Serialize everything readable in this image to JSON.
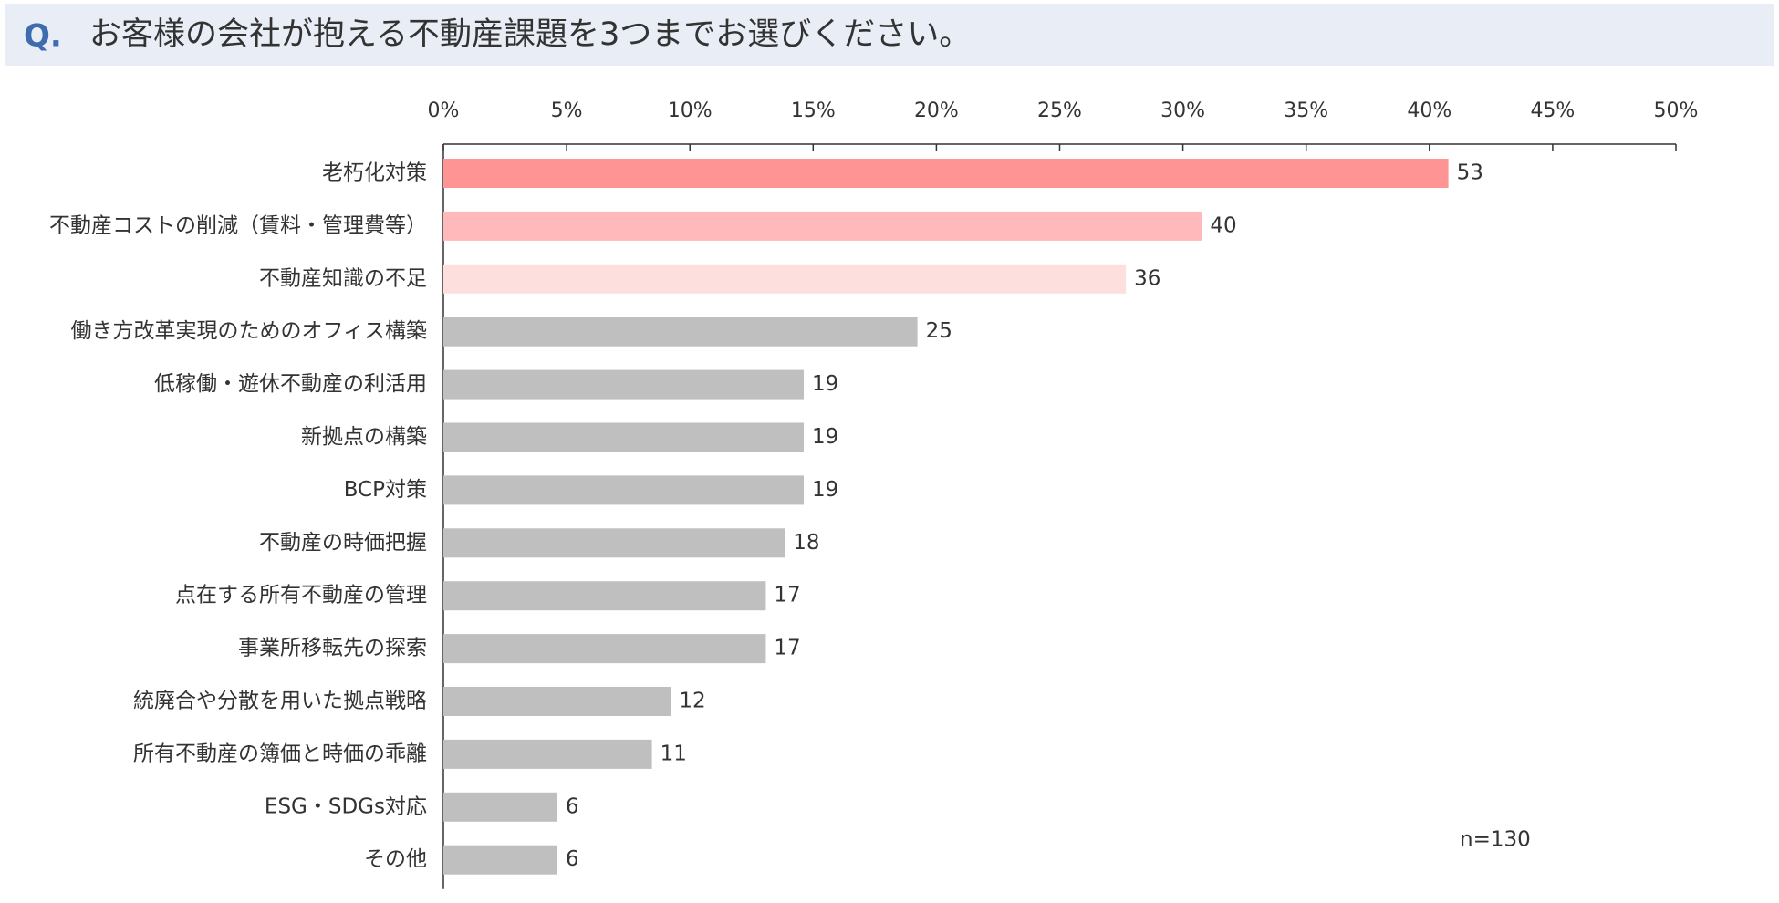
{
  "header": {
    "marker": "Q.",
    "question": "お客様の会社が抱える不動産課題を3つまでお選びください。"
  },
  "chart_data": {
    "type": "hbar",
    "categories": [
      "老朽化対策",
      "不動産コストの削減（賃料・管理費等）",
      "不動産知識の不足",
      "働き方改革実現のためのオフィス構築",
      "低稼働・遊休不動産の利活用",
      "新拠点の構築",
      "BCP対策",
      "不動産の時価把握",
      "点在する所有不動産の管理",
      "事業所移転先の探索",
      "統廃合や分散を用いた拠点戦略",
      "所有不動産の簿価と時価の乖離",
      "ESG・SDGs対応",
      "その他"
    ],
    "values": [
      40.77,
      30.77,
      27.69,
      19.23,
      14.62,
      14.62,
      14.62,
      13.85,
      13.08,
      13.08,
      9.23,
      8.46,
      4.62,
      4.62
    ],
    "value_labels": [
      "53",
      "40",
      "36",
      "25",
      "19",
      "19",
      "19",
      "18",
      "17",
      "17",
      "12",
      "11",
      "6",
      "6"
    ],
    "colors": [
      "#ff9494",
      "#ffb9ba",
      "#fde0de",
      "#bfbfbf",
      "#bfbfbf",
      "#bfbfbf",
      "#bfbfbf",
      "#bfbfbf",
      "#bfbfbf",
      "#bfbfbf",
      "#bfbfbf",
      "#bfbfbf",
      "#bfbfbf",
      "#bfbfbf"
    ],
    "xlim": [
      0,
      50
    ],
    "xticks": [
      {
        "value": 0,
        "label": "0%"
      },
      {
        "value": 5,
        "label": "5%"
      },
      {
        "value": 10,
        "label": "10%"
      },
      {
        "value": 15,
        "label": "15%"
      },
      {
        "value": 20,
        "label": "20%"
      },
      {
        "value": 25,
        "label": "25%"
      },
      {
        "value": 30,
        "label": "30%"
      },
      {
        "value": 35,
        "label": "35%"
      },
      {
        "value": 40,
        "label": "40%"
      },
      {
        "value": 45,
        "label": "45%"
      },
      {
        "value": 50,
        "label": "50%"
      }
    ],
    "annotation": "n=130"
  }
}
